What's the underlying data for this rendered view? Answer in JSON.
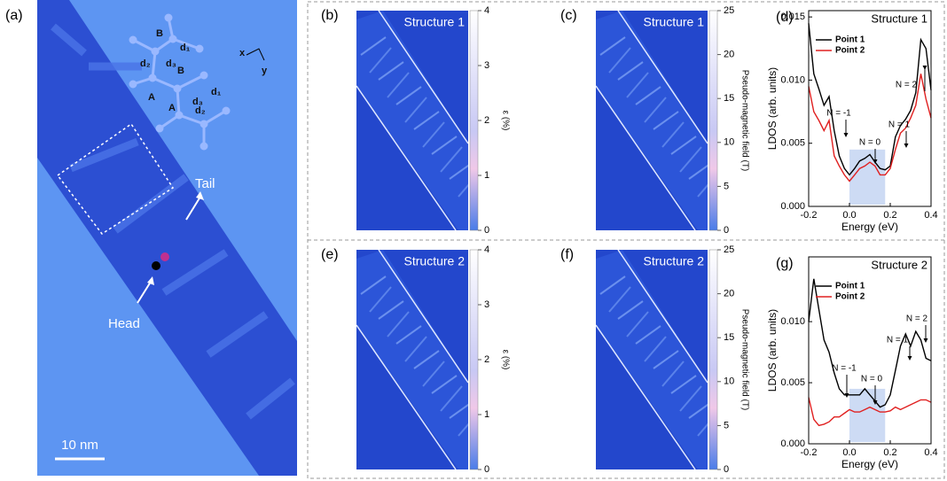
{
  "panel_a": {
    "label": "(a)",
    "tail": "Tail",
    "head": "Head",
    "scale_bar": "10 nm",
    "lattice_labels": [
      "B",
      "d₁",
      "d₂",
      "d₃",
      "A",
      "B",
      "d₃",
      "A",
      "d₁",
      "d₂",
      "x",
      "y"
    ]
  },
  "maps": [
    {
      "label": "(b)",
      "title": "Structure 1",
      "colorbar": {
        "title": "ε (%)",
        "lim": [
          0,
          4
        ],
        "ticks": [
          0,
          1,
          2,
          3,
          4
        ]
      }
    },
    {
      "label": "(c)",
      "title": "Structure 1",
      "colorbar": {
        "title": "Pseudo-magnetic field (T)",
        "lim": [
          0,
          25
        ],
        "ticks": [
          0,
          5,
          10,
          15,
          20,
          25
        ]
      }
    },
    {
      "label": "(e)",
      "title": "Structure 2",
      "colorbar": {
        "title": "ε (%)",
        "lim": [
          0,
          4
        ],
        "ticks": [
          0,
          1,
          2,
          3,
          4
        ]
      }
    },
    {
      "label": "(f)",
      "title": "Structure 2",
      "colorbar": {
        "title": "Pseudo-magnetic field (T)",
        "lim": [
          0,
          25
        ],
        "ticks": [
          0,
          5,
          10,
          15,
          20,
          25
        ]
      }
    }
  ],
  "chart_data": [
    {
      "type": "line",
      "label": "(d)",
      "title": "Structure 1",
      "x_label": "Energy (eV)",
      "y_label": "LDOS (arb. units)",
      "x": [
        -0.2,
        -0.175,
        -0.15,
        -0.125,
        -0.1,
        -0.075,
        -0.05,
        -0.025,
        0,
        0.025,
        0.05,
        0.075,
        0.1,
        0.125,
        0.15,
        0.175,
        0.2,
        0.225,
        0.25,
        0.275,
        0.3,
        0.325,
        0.35,
        0.375,
        0.4
      ],
      "series": [
        {
          "name": "Point 1",
          "color": "#000000",
          "values": [
            0.0145,
            0.0105,
            0.0093,
            0.008,
            0.0087,
            0.006,
            0.004,
            0.003,
            0.0025,
            0.003,
            0.0036,
            0.0038,
            0.0041,
            0.0035,
            0.003,
            0.0029,
            0.0032,
            0.0055,
            0.0064,
            0.0069,
            0.0076,
            0.009,
            0.0132,
            0.0125,
            0.0092
          ]
        },
        {
          "name": "Point 2",
          "color": "#e02020",
          "values": [
            0.0095,
            0.0075,
            0.0068,
            0.006,
            0.0068,
            0.004,
            0.0032,
            0.0025,
            0.002,
            0.0025,
            0.003,
            0.0032,
            0.0035,
            0.0032,
            0.0025,
            0.0025,
            0.003,
            0.0045,
            0.0058,
            0.0062,
            0.007,
            0.008,
            0.0105,
            0.0085,
            0.007
          ]
        }
      ],
      "annotations": [
        "N = -1",
        "N = 0",
        "N = 1",
        "N = 2"
      ],
      "xlim": [
        -0.2,
        0.4
      ],
      "xticks": [
        -0.2,
        {
          "value": 0,
          "label": "0.0"
        },
        0.2,
        0.4
      ],
      "ylim": [
        0,
        0.0155
      ],
      "yticks": [
        {
          "value": 0,
          "label": "0.000"
        },
        {
          "value": 0.005,
          "label": "0.005"
        },
        {
          "value": 0.01,
          "label": "0.010"
        },
        {
          "value": 0.015,
          "label": "0.015"
        }
      ]
    },
    {
      "type": "line",
      "label": "(g)",
      "title": "Structure 2",
      "x_label": "Energy (eV)",
      "y_label": "LDOS (arb. units)",
      "x": [
        -0.2,
        -0.175,
        -0.15,
        -0.125,
        -0.1,
        -0.075,
        -0.05,
        -0.025,
        0,
        0.025,
        0.05,
        0.075,
        0.1,
        0.125,
        0.15,
        0.175,
        0.2,
        0.225,
        0.25,
        0.275,
        0.3,
        0.325,
        0.35,
        0.375,
        0.4
      ],
      "series": [
        {
          "name": "Point 1",
          "color": "#000000",
          "values": [
            0.01,
            0.0135,
            0.011,
            0.0085,
            0.0075,
            0.0058,
            0.0045,
            0.004,
            0.004,
            0.004,
            0.004,
            0.0045,
            0.004,
            0.0035,
            0.003,
            0.0032,
            0.004,
            0.006,
            0.008,
            0.009,
            0.008,
            0.0092,
            0.0085,
            0.007,
            0.0068
          ]
        },
        {
          "name": "Point 2",
          "color": "#e02020",
          "values": [
            0.0038,
            0.002,
            0.0015,
            0.0016,
            0.0018,
            0.0022,
            0.0022,
            0.0025,
            0.0028,
            0.0026,
            0.0026,
            0.0028,
            0.003,
            0.0028,
            0.0026,
            0.0026,
            0.0027,
            0.003,
            0.0028,
            0.003,
            0.0032,
            0.0034,
            0.0036,
            0.0036,
            0.0034
          ]
        }
      ],
      "annotations": [
        "N = -1",
        "N = 0",
        "N = 1",
        "N = 2"
      ],
      "xlim": [
        -0.2,
        0.4
      ],
      "xticks": [
        -0.2,
        {
          "value": 0,
          "label": "0.0"
        },
        0.2,
        0.4
      ],
      "ylim": [
        0,
        0.0153
      ],
      "yticks": [
        {
          "value": 0,
          "label": "0.000"
        },
        {
          "value": 0.005,
          "label": "0.005"
        },
        {
          "value": 0.01,
          "label": "0.010"
        }
      ]
    }
  ]
}
